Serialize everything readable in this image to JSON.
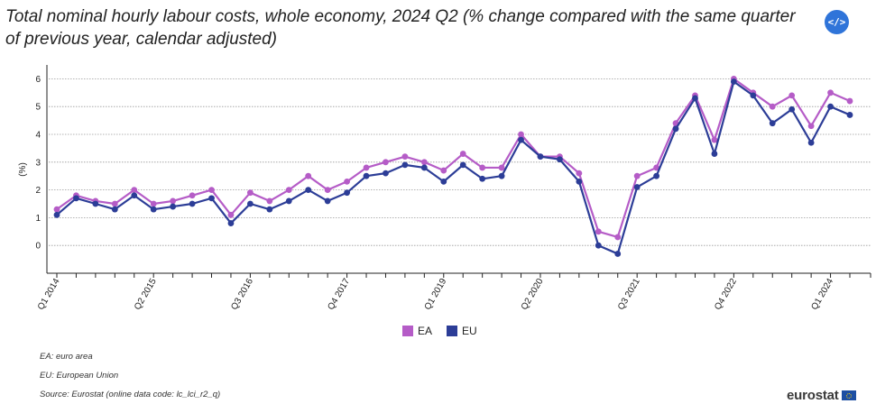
{
  "title": "Total nominal hourly labour costs, whole economy, 2024 Q2 (% change compared with the same quarter of previous year, calendar adjusted)",
  "embed_label": "</>",
  "colors": {
    "EA": "#b55cc7",
    "EU": "#2c3d97",
    "grid": "#9a9a9a"
  },
  "chart_data": {
    "type": "line",
    "title": "Total nominal hourly labour costs, whole economy, 2024 Q2 (% change compared with the same quarter of previous year, calendar adjusted)",
    "ylabel": "(%)",
    "xlabel": "",
    "ylim": [
      -1,
      6.5
    ],
    "yticks": [
      0,
      1,
      2,
      3,
      4,
      5,
      6
    ],
    "categories": [
      "Q1 2014",
      "Q2 2014",
      "Q3 2014",
      "Q4 2014",
      "Q1 2015",
      "Q2 2015",
      "Q3 2015",
      "Q4 2015",
      "Q1 2016",
      "Q2 2016",
      "Q3 2016",
      "Q4 2016",
      "Q1 2017",
      "Q2 2017",
      "Q3 2017",
      "Q4 2017",
      "Q1 2018",
      "Q2 2018",
      "Q3 2018",
      "Q4 2018",
      "Q1 2019",
      "Q2 2019",
      "Q3 2019",
      "Q4 2019",
      "Q1 2020",
      "Q2 2020",
      "Q3 2020",
      "Q4 2020",
      "Q1 2021",
      "Q2 2021",
      "Q3 2021",
      "Q4 2021",
      "Q1 2022",
      "Q2 2022",
      "Q3 2022",
      "Q4 2022",
      "Q1 2023",
      "Q2 2023",
      "Q3 2023",
      "Q4 2023",
      "Q1 2024",
      "Q2 2024"
    ],
    "tick_labels": [
      {
        "index": 0,
        "label": "Q1 2014"
      },
      {
        "index": 5,
        "label": "Q2 2015"
      },
      {
        "index": 10,
        "label": "Q3 2016"
      },
      {
        "index": 15,
        "label": "Q4 2017"
      },
      {
        "index": 20,
        "label": "Q1 2019"
      },
      {
        "index": 25,
        "label": "Q2 2020"
      },
      {
        "index": 30,
        "label": "Q3 2021"
      },
      {
        "index": 35,
        "label": "Q4 2022"
      },
      {
        "index": 40,
        "label": "Q1 2024"
      }
    ],
    "series": [
      {
        "name": "EA",
        "values": [
          1.3,
          1.8,
          1.6,
          1.5,
          2.0,
          1.5,
          1.6,
          1.8,
          2.0,
          1.1,
          1.9,
          1.6,
          2.0,
          2.5,
          2.0,
          2.3,
          2.8,
          3.0,
          3.2,
          3.0,
          2.7,
          3.3,
          2.8,
          2.8,
          4.0,
          3.2,
          3.2,
          2.6,
          0.5,
          0.3,
          2.5,
          2.8,
          4.4,
          5.4,
          3.8,
          6.0,
          5.5,
          5.0,
          5.4,
          4.3,
          5.5,
          5.2
        ]
      },
      {
        "name": "EU",
        "values": [
          1.1,
          1.7,
          1.5,
          1.3,
          1.8,
          1.3,
          1.4,
          1.5,
          1.7,
          0.8,
          1.5,
          1.3,
          1.6,
          2.0,
          1.6,
          1.9,
          2.5,
          2.6,
          2.9,
          2.8,
          2.3,
          2.9,
          2.4,
          2.5,
          3.8,
          3.2,
          3.1,
          2.3,
          0.0,
          -0.3,
          2.1,
          2.5,
          4.2,
          5.3,
          3.3,
          5.9,
          5.4,
          4.4,
          4.9,
          3.7,
          5.0,
          4.7
        ]
      }
    ],
    "legend": [
      "EA",
      "EU"
    ],
    "legend_position": "bottom-center",
    "grid": true
  },
  "notes": [
    "EA: euro area",
    "EU: European Union",
    "Source: Eurostat (online data code: lc_lci_r2_q)"
  ],
  "logo_text": "eurostat"
}
